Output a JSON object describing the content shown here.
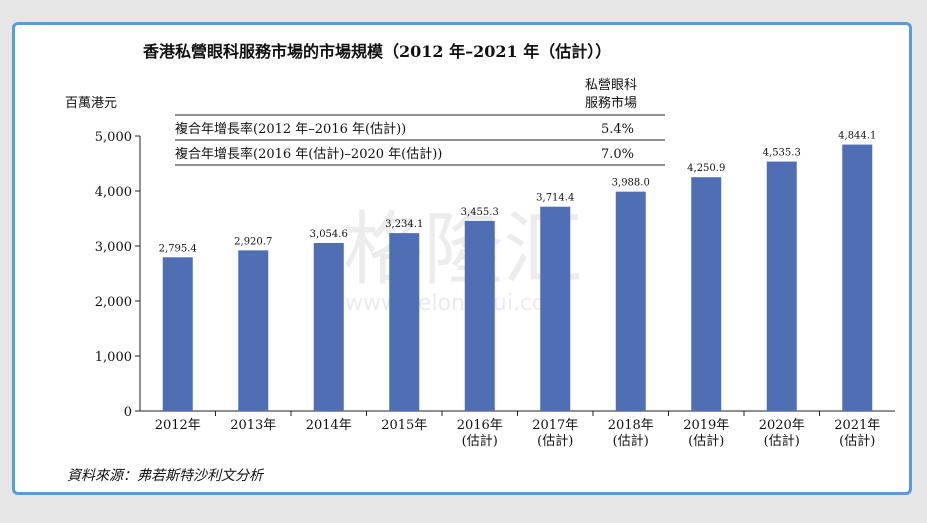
{
  "chart_data": {
    "type": "bar",
    "title": "香港私營眼科服務市場的市場規模（2012 年–2021 年（估計））",
    "ylabel": "百萬港元",
    "ylim": [
      0,
      5000
    ],
    "yticks": [
      "0",
      "1,000",
      "2,000",
      "3,000",
      "4,000",
      "5,000"
    ],
    "categories": [
      [
        "2012年"
      ],
      [
        "2013年"
      ],
      [
        "2014年"
      ],
      [
        "2015年"
      ],
      [
        "2016年",
        "(估計)"
      ],
      [
        "2017年",
        "(估計)"
      ],
      [
        "2018年",
        "(估計)"
      ],
      [
        "2019年",
        "(估計)"
      ],
      [
        "2020年",
        "(估計)"
      ],
      [
        "2021年",
        "(估計)"
      ]
    ],
    "values": [
      2795.4,
      2920.7,
      3054.6,
      3234.1,
      3455.3,
      3714.4,
      3988.0,
      4250.9,
      4535.3,
      4844.1
    ],
    "value_labels": [
      "2,795.4",
      "2,920.7",
      "3,054.6",
      "3,234.1",
      "3,455.3",
      "3,714.4",
      "3,988.0",
      "4,250.9",
      "4,535.3",
      "4,844.1"
    ],
    "bar_color": "#4f6eb3",
    "cagr_table": {
      "header": [
        "私營眼科",
        "服務市場"
      ],
      "rows": [
        {
          "label": "複合年增長率(2012 年–2016 年(估計))",
          "value": "5.4%"
        },
        {
          "label": "複合年增長率(2016 年(估計)–2020 年(估計))",
          "value": "7.0%"
        }
      ]
    },
    "source": "資料來源：弗若斯特沙利文分析",
    "watermark": [
      "格隆汇",
      "www.gelonghui.com"
    ]
  }
}
